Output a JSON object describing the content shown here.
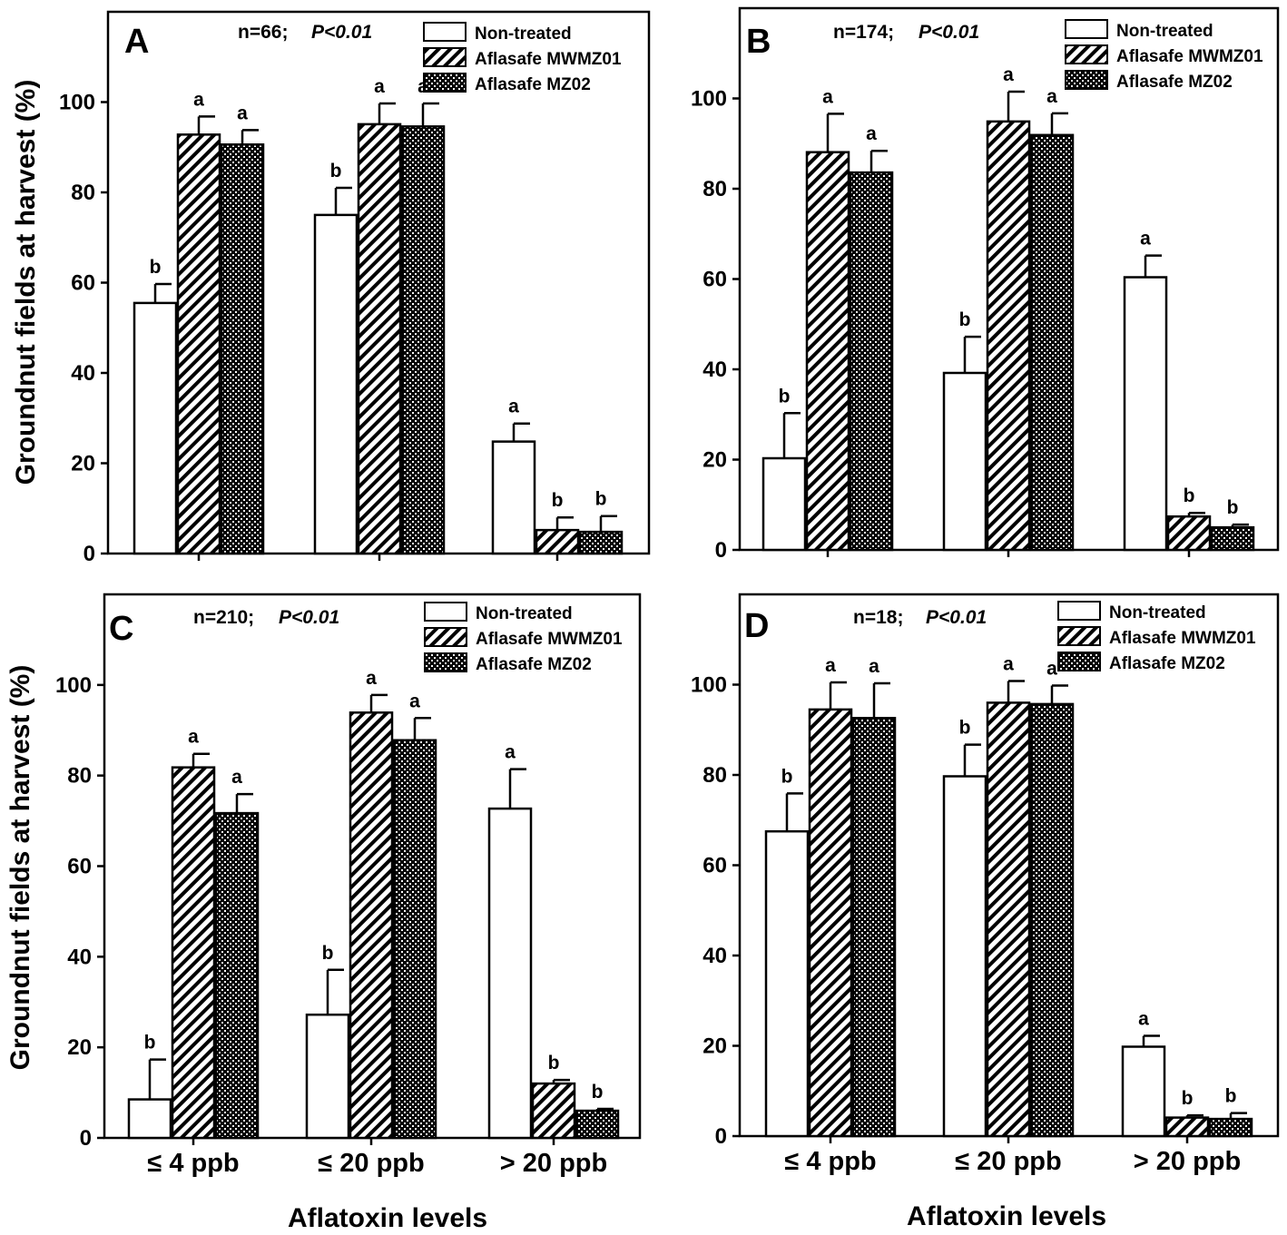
{
  "x_axis_title": "Aflatoxin levels",
  "y_axis_title": "Groundnut fields at harvest (%)",
  "chart_data": [
    {
      "type": "bar",
      "panel": "A",
      "title_n": "n=66;",
      "title_p": "P<0.01",
      "categories": [
        "≤ 4 ppb",
        "≤ 20 ppb",
        "> 20 ppb"
      ],
      "ylim": [
        0,
        120
      ],
      "yticks": [
        0,
        20,
        40,
        60,
        80,
        100
      ],
      "legend_position": "top-right",
      "series": [
        {
          "name": "Non-treated",
          "pattern": "plain",
          "values": [
            55.5,
            75,
            24.8
          ],
          "errors": [
            4.2,
            6,
            4
          ],
          "letters": [
            "b",
            "b",
            "a"
          ]
        },
        {
          "name": "Aflasafe MWMZ01",
          "pattern": "hatch",
          "values": [
            92.8,
            95.1,
            5.2
          ],
          "errors": [
            4,
            4.6,
            2.8
          ],
          "letters": [
            "a",
            "a",
            "b"
          ]
        },
        {
          "name": "Aflasafe MZ02",
          "pattern": "cross",
          "values": [
            90.6,
            94.6,
            4.8
          ],
          "errors": [
            3.2,
            5.1,
            3.5
          ],
          "letters": [
            "a",
            "a",
            "b"
          ]
        }
      ]
    },
    {
      "type": "bar",
      "panel": "B",
      "title_n": "n=174;",
      "title_p": "P<0.01",
      "categories": [
        "≤ 4 ppb",
        "≤ 20 ppb",
        "> 20 ppb"
      ],
      "ylim": [
        0,
        120
      ],
      "yticks": [
        0,
        20,
        40,
        60,
        80,
        100
      ],
      "legend_position": "top-right",
      "series": [
        {
          "name": "Non-treated",
          "pattern": "plain",
          "values": [
            20.3,
            39.2,
            60.4
          ],
          "errors": [
            10,
            8,
            4.8
          ],
          "letters": [
            "b",
            "b",
            "a"
          ]
        },
        {
          "name": "Aflasafe MWMZ01",
          "pattern": "hatch",
          "values": [
            88.1,
            94.9,
            7.4
          ],
          "errors": [
            8.5,
            6.6,
            0.8
          ],
          "letters": [
            "a",
            "a",
            "b"
          ]
        },
        {
          "name": "Aflasafe MZ02",
          "pattern": "cross",
          "values": [
            83.6,
            91.9,
            5
          ],
          "errors": [
            4.8,
            4.8,
            0.6
          ],
          "letters": [
            "a",
            "a",
            "b"
          ]
        }
      ]
    },
    {
      "type": "bar",
      "panel": "C",
      "title_n": "n=210;",
      "title_p": "P<0.01",
      "categories": [
        "≤ 4 ppb",
        "≤ 20 ppb",
        "> 20 ppb"
      ],
      "ylim": [
        0,
        120
      ],
      "yticks": [
        0,
        20,
        40,
        60,
        80,
        100
      ],
      "legend_position": "top-right",
      "series": [
        {
          "name": "Non-treated",
          "pattern": "plain",
          "values": [
            8.5,
            27.2,
            72.7
          ],
          "errors": [
            8.8,
            9.9,
            8.7
          ],
          "letters": [
            "b",
            "b",
            "a"
          ]
        },
        {
          "name": "Aflasafe MWMZ01",
          "pattern": "hatch",
          "values": [
            81.8,
            93.9,
            12
          ],
          "errors": [
            3,
            3.9,
            0.8
          ],
          "letters": [
            "a",
            "a",
            "b"
          ]
        },
        {
          "name": "Aflasafe MZ02",
          "pattern": "cross",
          "values": [
            71.7,
            87.8,
            6
          ],
          "errors": [
            4.2,
            4.9,
            0.4
          ],
          "letters": [
            "a",
            "a",
            "b"
          ]
        }
      ]
    },
    {
      "type": "bar",
      "panel": "D",
      "title_n": "n=18;",
      "title_p": "P<0.01",
      "categories": [
        "≤ 4 ppb",
        "≤ 20 ppb",
        "> 20 ppb"
      ],
      "ylim": [
        0,
        120
      ],
      "yticks": [
        0,
        20,
        40,
        60,
        80,
        100
      ],
      "legend_position": "top-right",
      "series": [
        {
          "name": "Non-treated",
          "pattern": "plain",
          "values": [
            67.5,
            79.7,
            19.8
          ],
          "errors": [
            8.4,
            7,
            2.4
          ],
          "letters": [
            "b",
            "b",
            "a"
          ]
        },
        {
          "name": "Aflasafe MWMZ01",
          "pattern": "hatch",
          "values": [
            94.5,
            96,
            4.1
          ],
          "errors": [
            6,
            4.8,
            0.5
          ],
          "letters": [
            "a",
            "a",
            "b"
          ]
        },
        {
          "name": "Aflasafe MZ02",
          "pattern": "cross",
          "values": [
            92.6,
            95.7,
            3.8
          ],
          "errors": [
            7.7,
            4.1,
            1.3
          ],
          "letters": [
            "a",
            "a",
            "b"
          ]
        }
      ]
    }
  ]
}
